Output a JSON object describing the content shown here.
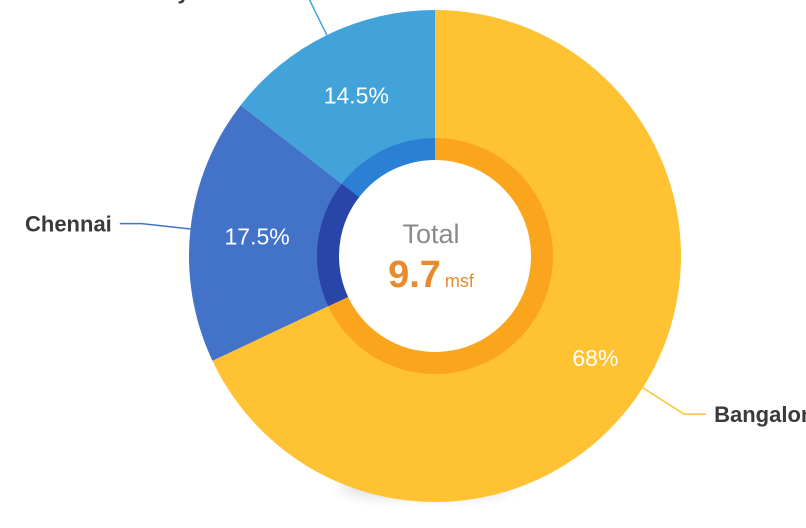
{
  "chart_data": {
    "type": "pie",
    "variant": "donut",
    "categories": [
      "Bangalore",
      "Chennai",
      "Hyderabad"
    ],
    "values": [
      68,
      17.5,
      14.5
    ],
    "labels": [
      "68%",
      "17.5%",
      "14.5%"
    ],
    "colors": [
      "#FFC233",
      "#4273C8",
      "#42A3DA"
    ],
    "inner_colors": [
      "#FBA51C",
      "#2A45A8",
      "#2B7FD4"
    ],
    "center": {
      "title": "Total",
      "value": "9.7",
      "unit": "msf",
      "value_color": "#E98A2E"
    }
  }
}
